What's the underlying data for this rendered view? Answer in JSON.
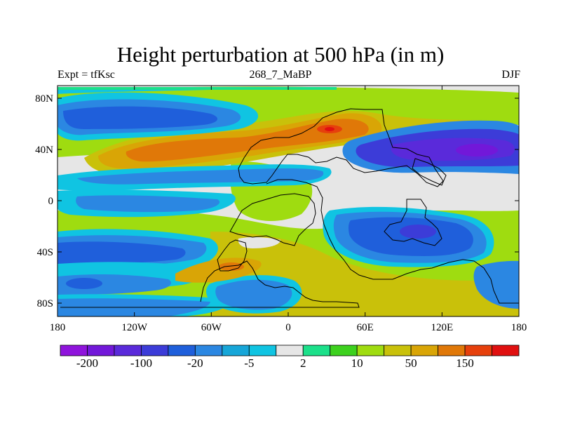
{
  "title": "Height perturbation at 500 hPa (in m)",
  "subtitle_left": "Expt = tfKsc",
  "subtitle_center": "268_7_MaBP",
  "subtitle_right": "DJF",
  "lat_ticks": [
    "80N",
    "40N",
    "0",
    "40S",
    "80S"
  ],
  "lon_ticks": [
    "180",
    "120W",
    "60W",
    "0",
    "60E",
    "120E",
    "180"
  ],
  "colorbar": {
    "labels": [
      "-200",
      "-100",
      "-20",
      "-5",
      "2",
      "10",
      "50",
      "150"
    ],
    "colors": [
      "#8f14dc",
      "#7218d9",
      "#5a2ada",
      "#3c3cd8",
      "#1f5fdb",
      "#2b87e2",
      "#17a6d8",
      "#10c4e2",
      "#e6e6e6",
      "#1ce08a",
      "#3dd11e",
      "#9fdc10",
      "#c9c10a",
      "#d9a506",
      "#e07808",
      "#e6400c",
      "#e01010"
    ]
  }
}
